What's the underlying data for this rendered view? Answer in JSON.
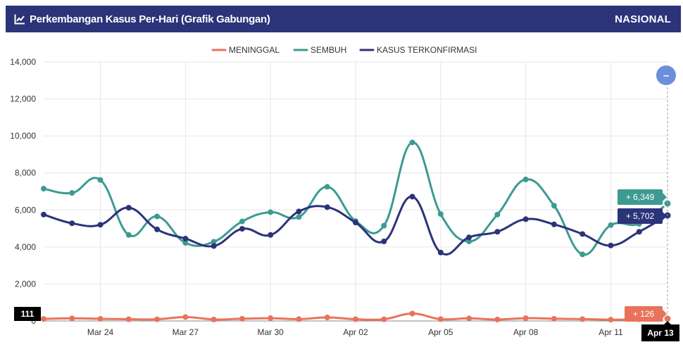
{
  "header": {
    "title": "Perkembangan Kasus Per-Hari (Grafik Gabungan)",
    "region": "NASIONAL",
    "icon": "line-chart-icon"
  },
  "chart_data": {
    "type": "line",
    "x_labels": [
      "Mar 24",
      "Mar 27",
      "Mar 30",
      "Apr 02",
      "Apr 05",
      "Apr 08",
      "Apr 11",
      "Apr 13"
    ],
    "ylim": [
      0,
      14000
    ],
    "y_ticks": [
      0,
      2000,
      4000,
      6000,
      8000,
      10000,
      12000,
      14000
    ],
    "y_tick_labels": [
      "0",
      "2,000",
      "4,000",
      "6,000",
      "8,000",
      "10,000",
      "12,000",
      "14,000"
    ],
    "grid": true,
    "legend_position": "top-center",
    "x": [
      "Mar 22",
      "Mar 23",
      "Mar 24",
      "Mar 25",
      "Mar 26",
      "Mar 27",
      "Mar 28",
      "Mar 29",
      "Mar 30",
      "Mar 31",
      "Apr 01",
      "Apr 02",
      "Apr 03",
      "Apr 04",
      "Apr 05",
      "Apr 06",
      "Apr 07",
      "Apr 08",
      "Apr 09",
      "Apr 10",
      "Apr 11",
      "Apr 12",
      "Apr 13"
    ],
    "series": [
      {
        "name": "MENINGGAL",
        "color": "#e8735a",
        "values": [
          111,
          140,
          115,
          95,
          90,
          210,
          80,
          120,
          150,
          100,
          190,
          95,
          90,
          400,
          100,
          140,
          80,
          150,
          120,
          100,
          70,
          90,
          126
        ]
      },
      {
        "name": "SEMBUH",
        "color": "#3d9a92",
        "values": [
          7150,
          6920,
          7620,
          4650,
          5650,
          4220,
          4280,
          5380,
          5880,
          5620,
          7250,
          5400,
          5150,
          9650,
          5780,
          4300,
          5750,
          7650,
          6230,
          3600,
          5180,
          5250,
          6349
        ]
      },
      {
        "name": "KASUS TERKONFIRMASI",
        "color": "#2b3379",
        "values": [
          5750,
          5280,
          5200,
          6120,
          4950,
          4450,
          4050,
          4980,
          4650,
          5920,
          6150,
          5320,
          4300,
          6720,
          3700,
          4520,
          4820,
          5500,
          5220,
          4700,
          4080,
          4820,
          5702
        ]
      }
    ],
    "annotations": {
      "first_x_value": "111",
      "last_x_label": "Apr 13",
      "sembuh_label": "+ 6,349",
      "confirmed_label": "+ 5,702",
      "death_label": "+ 126"
    }
  },
  "controls": {
    "zoom_out_symbol": "–"
  }
}
